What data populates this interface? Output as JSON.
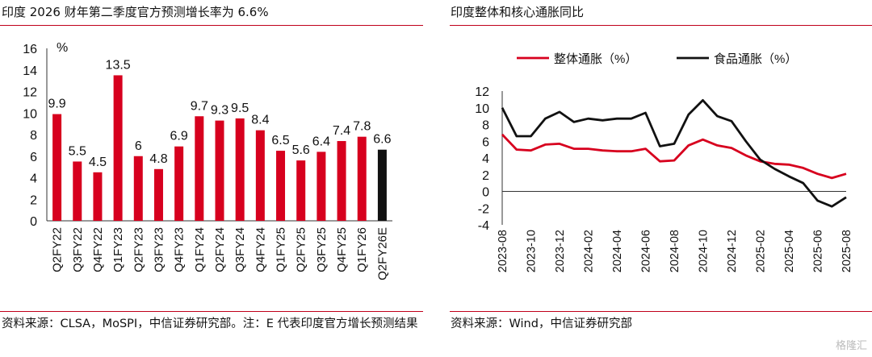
{
  "left_panel": {
    "title": "印度 2026 财年第二季度官方预测增长率为 6.6%",
    "source": "资料来源：CLSA，MoSPI，中信证券研究部。注：E 代表印度官方增长预测结果"
  },
  "right_panel": {
    "title": "印度整体和核心通胀同比",
    "source": "资料来源：Wind，中信证券研究部"
  },
  "watermark": "格隆汇",
  "colors": {
    "red": "#d7001e",
    "black": "#111111",
    "rule": "#c0001a"
  },
  "chart_data": [
    {
      "type": "bar",
      "title": "印度 2026 财年第二季度官方预测增长率为 6.6%",
      "ylabel": "%",
      "ylim": [
        0,
        16
      ],
      "yticks": [
        0,
        2,
        4,
        6,
        8,
        10,
        12,
        14,
        16
      ],
      "categories": [
        "Q2FY22",
        "Q3FY22",
        "Q4FY22",
        "Q1FY23",
        "Q2FY23",
        "Q3FY23",
        "Q4FY23",
        "Q1FY24",
        "Q2FY24",
        "Q3FY24",
        "Q4FY24",
        "Q1FY25",
        "Q2FY25",
        "Q3FY25",
        "Q4FY25",
        "Q1FY26",
        "Q2FY26E"
      ],
      "values": [
        9.9,
        5.5,
        4.5,
        13.5,
        6,
        4.8,
        6.9,
        9.7,
        9.3,
        9.5,
        8.4,
        6.5,
        5.6,
        6.4,
        7.4,
        7.8,
        6.6
      ],
      "labels": [
        "9.9",
        "5.5",
        "4.5",
        "13.5",
        "6",
        "4.8",
        "6.9",
        "9.7",
        "9.3",
        "9.5",
        "8.4",
        "6.5",
        "5.6",
        "6.4",
        "7.4",
        "7.8",
        "6.6"
      ],
      "bar_colors": [
        "#d7001e",
        "#d7001e",
        "#d7001e",
        "#d7001e",
        "#d7001e",
        "#d7001e",
        "#d7001e",
        "#d7001e",
        "#d7001e",
        "#d7001e",
        "#d7001e",
        "#d7001e",
        "#d7001e",
        "#d7001e",
        "#d7001e",
        "#d7001e",
        "#111111"
      ]
    },
    {
      "type": "line",
      "title": "印度整体和核心通胀同比",
      "ylim": [
        -4,
        12
      ],
      "yticks": [
        -4,
        -2,
        0,
        2,
        4,
        6,
        8,
        10,
        12
      ],
      "x": [
        "2023-08",
        "2023-09",
        "2023-10",
        "2023-11",
        "2023-12",
        "2024-01",
        "2024-02",
        "2024-03",
        "2024-04",
        "2024-05",
        "2024-06",
        "2024-07",
        "2024-08",
        "2024-09",
        "2024-10",
        "2024-11",
        "2024-12",
        "2025-01",
        "2025-02",
        "2025-03",
        "2025-04",
        "2025-05",
        "2025-06",
        "2025-07",
        "2025-08"
      ],
      "xtick_labels": [
        "2023-08",
        "2023-10",
        "2023-12",
        "2024-02",
        "2024-04",
        "2024-06",
        "2024-08",
        "2024-10",
        "2024-12",
        "2025-02",
        "2025-04",
        "2025-06",
        "2025-08"
      ],
      "legend_position": "top",
      "series": [
        {
          "name": "整体通胀（%）",
          "color": "#d7001e",
          "values": [
            6.8,
            5.0,
            4.9,
            5.6,
            5.7,
            5.1,
            5.1,
            4.9,
            4.8,
            4.8,
            5.1,
            3.6,
            3.7,
            5.5,
            6.2,
            5.5,
            5.2,
            4.3,
            3.6,
            3.3,
            3.2,
            2.8,
            2.1,
            1.6,
            2.1
          ]
        },
        {
          "name": "食品通胀（%）",
          "color": "#111111",
          "values": [
            10.0,
            6.6,
            6.6,
            8.7,
            9.5,
            8.3,
            8.7,
            8.5,
            8.7,
            8.7,
            9.4,
            5.4,
            5.7,
            9.2,
            10.9,
            9.0,
            8.4,
            6.0,
            3.8,
            2.7,
            1.8,
            0.99,
            -1.1,
            -1.8,
            -0.7
          ]
        }
      ]
    }
  ]
}
